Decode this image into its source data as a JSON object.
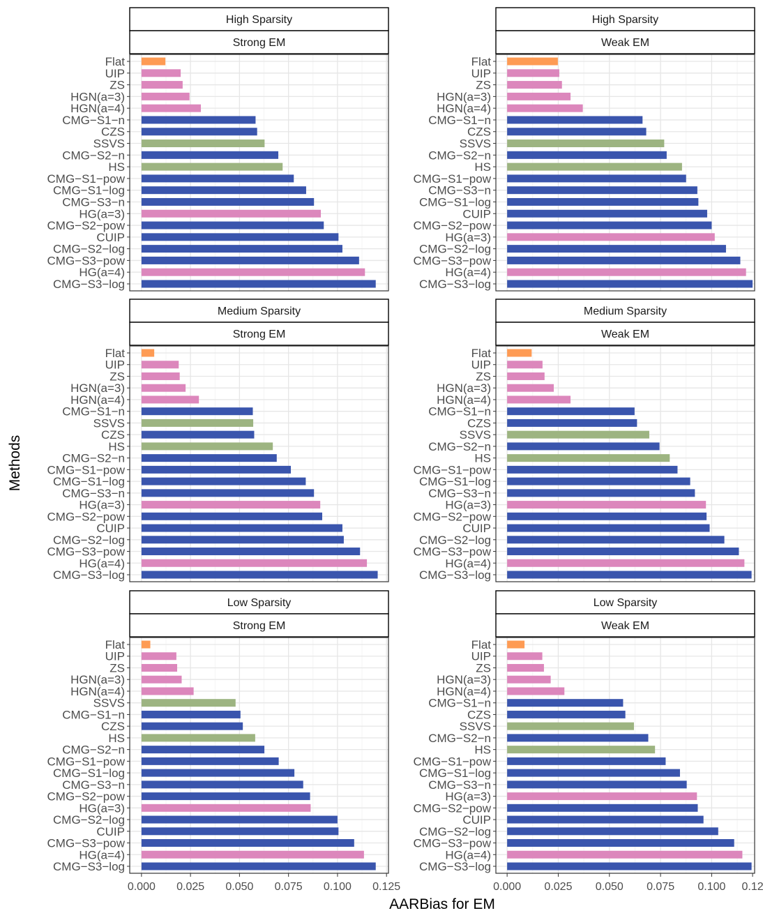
{
  "chart_data": {
    "type": "bar",
    "orientation": "horizontal",
    "xlabel": "AARBias for EM",
    "ylabel": "Methods",
    "colors": {
      "flat": "#fe9b54",
      "pink": "#dc87bc",
      "blue": "#3a55ad",
      "green": "#9db481"
    },
    "panels": [
      {
        "row_strip": "High Sparsity",
        "col_strip": "Strong EM",
        "x_ticks": [
          "0.000",
          "0.025",
          "0.050",
          "0.075",
          "0.100",
          "0.125"
        ],
        "xlim": [
          -0.006,
          0.126
        ],
        "bars": [
          {
            "label": "Flat",
            "value": 0.0122,
            "group": "flat"
          },
          {
            "label": "UIP",
            "value": 0.02,
            "group": "pink"
          },
          {
            "label": "ZS",
            "value": 0.021,
            "group": "pink"
          },
          {
            "label": "HGN(a=3)",
            "value": 0.0245,
            "group": "pink"
          },
          {
            "label": "HGN(a=4)",
            "value": 0.0303,
            "group": "pink"
          },
          {
            "label": "CMG−S1−n",
            "value": 0.0582,
            "group": "blue"
          },
          {
            "label": "CZS",
            "value": 0.059,
            "group": "blue"
          },
          {
            "label": "SSVS",
            "value": 0.0628,
            "group": "green"
          },
          {
            "label": "CMG−S2−n",
            "value": 0.0698,
            "group": "blue"
          },
          {
            "label": "HS",
            "value": 0.072,
            "group": "green"
          },
          {
            "label": "CMG−S1−pow",
            "value": 0.0777,
            "group": "blue"
          },
          {
            "label": "CMG−S1−log",
            "value": 0.084,
            "group": "blue"
          },
          {
            "label": "CMG−S3−n",
            "value": 0.088,
            "group": "blue"
          },
          {
            "label": "HG(a=3)",
            "value": 0.0915,
            "group": "pink"
          },
          {
            "label": "CMG−S2−pow",
            "value": 0.093,
            "group": "blue"
          },
          {
            "label": "CUIP",
            "value": 0.1005,
            "group": "blue"
          },
          {
            "label": "CMG−S2−log",
            "value": 0.1025,
            "group": "blue"
          },
          {
            "label": "CMG−S3−pow",
            "value": 0.111,
            "group": "blue"
          },
          {
            "label": "HG(a=4)",
            "value": 0.114,
            "group": "pink"
          },
          {
            "label": "CMG−S3−log",
            "value": 0.1195,
            "group": "blue"
          }
        ]
      },
      {
        "row_strip": "High Sparsity",
        "col_strip": "Weak EM",
        "x_ticks": [
          "0.000",
          "0.025",
          "0.050",
          "0.075",
          "0.100",
          "0.12"
        ],
        "xlim": [
          -0.0055,
          0.121
        ],
        "bars": [
          {
            "label": "Flat",
            "value": 0.0248,
            "group": "flat"
          },
          {
            "label": "UIP",
            "value": 0.0255,
            "group": "pink"
          },
          {
            "label": "ZS",
            "value": 0.0268,
            "group": "pink"
          },
          {
            "label": "HGN(a=3)",
            "value": 0.031,
            "group": "pink"
          },
          {
            "label": "HGN(a=4)",
            "value": 0.037,
            "group": "pink"
          },
          {
            "label": "CMG−S1−n",
            "value": 0.0662,
            "group": "blue"
          },
          {
            "label": "CZS",
            "value": 0.068,
            "group": "blue"
          },
          {
            "label": "SSVS",
            "value": 0.0768,
            "group": "green"
          },
          {
            "label": "CMG−S2−n",
            "value": 0.078,
            "group": "blue"
          },
          {
            "label": "HS",
            "value": 0.0855,
            "group": "green"
          },
          {
            "label": "CMG−S1−pow",
            "value": 0.0875,
            "group": "blue"
          },
          {
            "label": "CMG−S3−n",
            "value": 0.093,
            "group": "blue"
          },
          {
            "label": "CMG−S1−log",
            "value": 0.0935,
            "group": "blue"
          },
          {
            "label": "CUIP",
            "value": 0.0978,
            "group": "blue"
          },
          {
            "label": "CMG−S2−pow",
            "value": 0.1,
            "group": "blue"
          },
          {
            "label": "HG(a=3)",
            "value": 0.1015,
            "group": "pink"
          },
          {
            "label": "CMG−S2−log",
            "value": 0.107,
            "group": "blue"
          },
          {
            "label": "CMG−S3−pow",
            "value": 0.114,
            "group": "blue"
          },
          {
            "label": "HG(a=4)",
            "value": 0.1168,
            "group": "pink"
          },
          {
            "label": "CMG−S3−log",
            "value": 0.12,
            "group": "blue"
          }
        ]
      },
      {
        "row_strip": "Medium Sparsity",
        "col_strip": "Strong EM",
        "x_ticks": [
          "0.000",
          "0.025",
          "0.050",
          "0.075",
          "0.100",
          "0.125"
        ],
        "xlim": [
          -0.006,
          0.126
        ],
        "bars": [
          {
            "label": "Flat",
            "value": 0.0065,
            "group": "flat"
          },
          {
            "label": "UIP",
            "value": 0.019,
            "group": "pink"
          },
          {
            "label": "ZS",
            "value": 0.0195,
            "group": "pink"
          },
          {
            "label": "HGN(a=3)",
            "value": 0.0225,
            "group": "pink"
          },
          {
            "label": "HGN(a=4)",
            "value": 0.0293,
            "group": "pink"
          },
          {
            "label": "CMG−S1−n",
            "value": 0.0568,
            "group": "blue"
          },
          {
            "label": "SSVS",
            "value": 0.057,
            "group": "green"
          },
          {
            "label": "CZS",
            "value": 0.0575,
            "group": "blue"
          },
          {
            "label": "HS",
            "value": 0.067,
            "group": "green"
          },
          {
            "label": "CMG−S2−n",
            "value": 0.069,
            "group": "blue"
          },
          {
            "label": "CMG−S1−pow",
            "value": 0.0762,
            "group": "blue"
          },
          {
            "label": "CMG−S1−log",
            "value": 0.0838,
            "group": "blue"
          },
          {
            "label": "CMG−S3−n",
            "value": 0.088,
            "group": "blue"
          },
          {
            "label": "HG(a=3)",
            "value": 0.0912,
            "group": "pink"
          },
          {
            "label": "CMG−S2−pow",
            "value": 0.0922,
            "group": "blue"
          },
          {
            "label": "CUIP",
            "value": 0.1025,
            "group": "blue"
          },
          {
            "label": "CMG−S2−log",
            "value": 0.1032,
            "group": "blue"
          },
          {
            "label": "CMG−S3−pow",
            "value": 0.1115,
            "group": "blue"
          },
          {
            "label": "HG(a=4)",
            "value": 0.115,
            "group": "pink"
          },
          {
            "label": "CMG−S3−log",
            "value": 0.1205,
            "group": "blue"
          }
        ]
      },
      {
        "row_strip": "Medium Sparsity",
        "col_strip": "Weak EM",
        "x_ticks": [
          "0.000",
          "0.025",
          "0.050",
          "0.075",
          "0.100",
          "0.12"
        ],
        "xlim": [
          -0.0055,
          0.121
        ],
        "bars": [
          {
            "label": "Flat",
            "value": 0.012,
            "group": "flat"
          },
          {
            "label": "UIP",
            "value": 0.0173,
            "group": "pink"
          },
          {
            "label": "ZS",
            "value": 0.0183,
            "group": "pink"
          },
          {
            "label": "HGN(a=3)",
            "value": 0.0228,
            "group": "pink"
          },
          {
            "label": "HGN(a=4)",
            "value": 0.031,
            "group": "pink"
          },
          {
            "label": "CMG−S1−n",
            "value": 0.0623,
            "group": "blue"
          },
          {
            "label": "CZS",
            "value": 0.0635,
            "group": "blue"
          },
          {
            "label": "SSVS",
            "value": 0.0695,
            "group": "green"
          },
          {
            "label": "CMG−S2−n",
            "value": 0.0745,
            "group": "blue"
          },
          {
            "label": "HS",
            "value": 0.0795,
            "group": "green"
          },
          {
            "label": "CMG−S1−pow",
            "value": 0.0833,
            "group": "blue"
          },
          {
            "label": "CMG−S1−log",
            "value": 0.0895,
            "group": "blue"
          },
          {
            "label": "CMG−S3−n",
            "value": 0.0918,
            "group": "blue"
          },
          {
            "label": "HG(a=3)",
            "value": 0.0972,
            "group": "pink"
          },
          {
            "label": "CMG−S2−pow",
            "value": 0.0975,
            "group": "blue"
          },
          {
            "label": "CUIP",
            "value": 0.099,
            "group": "blue"
          },
          {
            "label": "CMG−S2−log",
            "value": 0.1062,
            "group": "blue"
          },
          {
            "label": "CMG−S3−pow",
            "value": 0.1133,
            "group": "blue"
          },
          {
            "label": "HG(a=4)",
            "value": 0.116,
            "group": "pink"
          },
          {
            "label": "CMG−S3−log",
            "value": 0.1195,
            "group": "blue"
          }
        ]
      },
      {
        "row_strip": "Low Sparsity",
        "col_strip": "Strong EM",
        "x_ticks": [
          "0.000",
          "0.025",
          "0.050",
          "0.075",
          "0.100",
          "0.125"
        ],
        "xlim": [
          -0.006,
          0.126
        ],
        "bars": [
          {
            "label": "Flat",
            "value": 0.0045,
            "group": "flat"
          },
          {
            "label": "UIP",
            "value": 0.0178,
            "group": "pink"
          },
          {
            "label": "ZS",
            "value": 0.0182,
            "group": "pink"
          },
          {
            "label": "HGN(a=3)",
            "value": 0.0205,
            "group": "pink"
          },
          {
            "label": "HGN(a=4)",
            "value": 0.0266,
            "group": "pink"
          },
          {
            "label": "SSVS",
            "value": 0.048,
            "group": "green"
          },
          {
            "label": "CMG−S1−n",
            "value": 0.0505,
            "group": "blue"
          },
          {
            "label": "CZS",
            "value": 0.0517,
            "group": "blue"
          },
          {
            "label": "HS",
            "value": 0.058,
            "group": "green"
          },
          {
            "label": "CMG−S2−n",
            "value": 0.0627,
            "group": "blue"
          },
          {
            "label": "CMG−S1−pow",
            "value": 0.07,
            "group": "blue"
          },
          {
            "label": "CMG−S1−log",
            "value": 0.078,
            "group": "blue"
          },
          {
            "label": "CMG−S3−n",
            "value": 0.0825,
            "group": "blue"
          },
          {
            "label": "CMG−S2−pow",
            "value": 0.086,
            "group": "blue"
          },
          {
            "label": "HG(a=3)",
            "value": 0.0863,
            "group": "pink"
          },
          {
            "label": "CMG−S2−log",
            "value": 0.1,
            "group": "blue"
          },
          {
            "label": "CUIP",
            "value": 0.1005,
            "group": "blue"
          },
          {
            "label": "CMG−S3−pow",
            "value": 0.1085,
            "group": "blue"
          },
          {
            "label": "HG(a=4)",
            "value": 0.1135,
            "group": "pink"
          },
          {
            "label": "CMG−S3−log",
            "value": 0.1195,
            "group": "blue"
          }
        ]
      },
      {
        "row_strip": "Low Sparsity",
        "col_strip": "Weak EM",
        "x_ticks": [
          "0.000",
          "0.025",
          "0.050",
          "0.075",
          "0.100",
          "0.12"
        ],
        "xlim": [
          -0.0055,
          0.121
        ],
        "bars": [
          {
            "label": "Flat",
            "value": 0.0085,
            "group": "flat"
          },
          {
            "label": "UIP",
            "value": 0.0172,
            "group": "pink"
          },
          {
            "label": "ZS",
            "value": 0.018,
            "group": "pink"
          },
          {
            "label": "HGN(a=3)",
            "value": 0.0213,
            "group": "pink"
          },
          {
            "label": "HGN(a=4)",
            "value": 0.028,
            "group": "pink"
          },
          {
            "label": "CMG−S1−n",
            "value": 0.0567,
            "group": "blue"
          },
          {
            "label": "CZS",
            "value": 0.0578,
            "group": "blue"
          },
          {
            "label": "SSVS",
            "value": 0.062,
            "group": "green"
          },
          {
            "label": "CMG−S2−n",
            "value": 0.069,
            "group": "blue"
          },
          {
            "label": "HS",
            "value": 0.0723,
            "group": "green"
          },
          {
            "label": "CMG−S1−pow",
            "value": 0.0775,
            "group": "blue"
          },
          {
            "label": "CMG−S1−log",
            "value": 0.0845,
            "group": "blue"
          },
          {
            "label": "CMG−S3−n",
            "value": 0.0878,
            "group": "blue"
          },
          {
            "label": "HG(a=3)",
            "value": 0.0928,
            "group": "pink"
          },
          {
            "label": "CMG−S2−pow",
            "value": 0.0932,
            "group": "blue"
          },
          {
            "label": "CUIP",
            "value": 0.096,
            "group": "blue"
          },
          {
            "label": "CMG−S2−log",
            "value": 0.1032,
            "group": "blue"
          },
          {
            "label": "CMG−S3−pow",
            "value": 0.111,
            "group": "blue"
          },
          {
            "label": "HG(a=4)",
            "value": 0.115,
            "group": "pink"
          },
          {
            "label": "CMG−S3−log",
            "value": 0.1195,
            "group": "blue"
          }
        ]
      }
    ]
  }
}
